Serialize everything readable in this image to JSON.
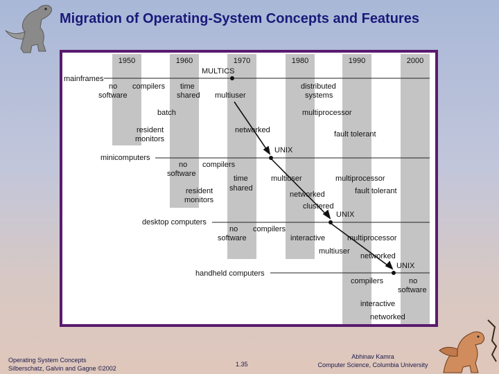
{
  "title": "Migration of Operating-System Concepts and Features",
  "years": [
    "1950",
    "1960",
    "1970",
    "1980",
    "1990",
    "2000"
  ],
  "multics": "MULTICS",
  "mainframes": {
    "label": "mainframes",
    "items": [
      "no",
      "software",
      "compilers",
      "time",
      "shared",
      "multiuser",
      "distributed",
      "systems",
      "batch",
      "multiprocessor",
      "resident",
      "monitors",
      "networked",
      "fault tolerant",
      "UNIX"
    ]
  },
  "minicomputers": {
    "label": "minicomputers",
    "items": [
      "no",
      "software",
      "compilers",
      "time",
      "shared",
      "multiuser",
      "multiprocessor",
      "fault tolerant",
      "resident",
      "monitors",
      "networked",
      "clustered",
      "UNIX"
    ]
  },
  "desktop": {
    "label": "desktop computers",
    "items": [
      "no",
      "software",
      "compilers",
      "interactive",
      "multiprocessor",
      "multiuser",
      "networked",
      "UNIX"
    ]
  },
  "handheld": {
    "label": "handheld computers",
    "items": [
      "compilers",
      "no",
      "software",
      "interactive",
      "networked"
    ]
  },
  "footer": {
    "left_line1": "Operating System Concepts",
    "left_line2": "Silberschatz, Galvin and  Gagne ©2002",
    "page": "1.35",
    "right_line1": "Abhinav Kamra",
    "right_line2": "Computer Science, Columbia University"
  }
}
